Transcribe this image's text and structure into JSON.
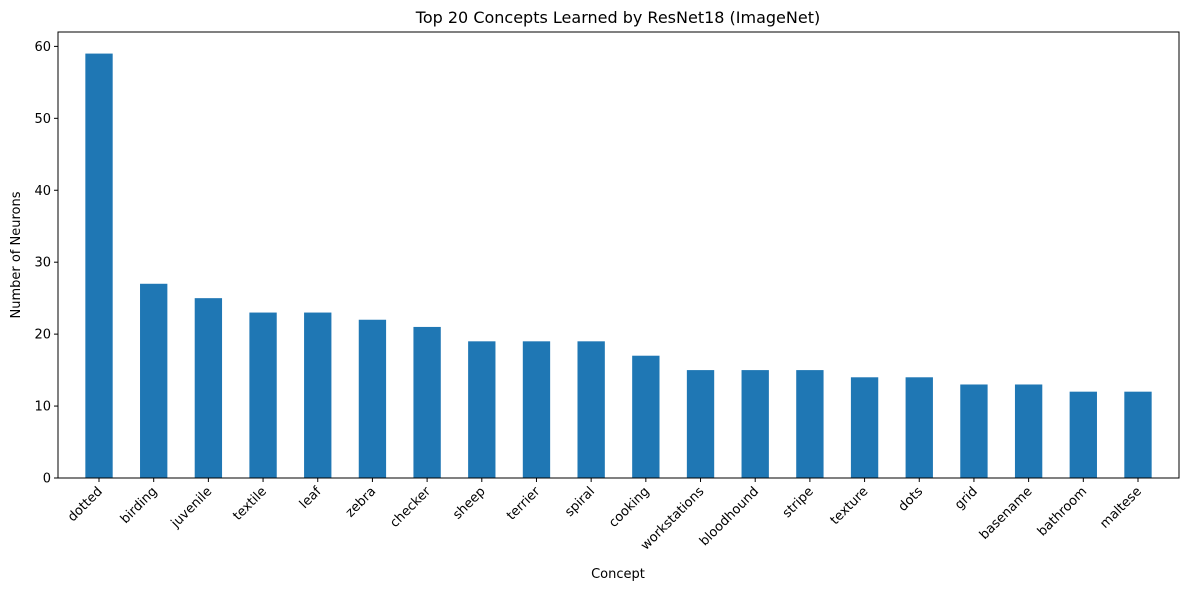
{
  "chart_data": {
    "type": "bar",
    "title": "Top 20 Concepts Learned by ResNet18 (ImageNet)",
    "xlabel": "Concept",
    "ylabel": "Number of Neurons",
    "categories": [
      "dotted",
      "birding",
      "juvenile",
      "textile",
      "leaf",
      "zebra",
      "checker",
      "sheep",
      "terrier",
      "spiral",
      "cooking",
      "workstations",
      "bloodhound",
      "stripe",
      "texture",
      "dots",
      "grid",
      "basename",
      "bathroom",
      "maltese"
    ],
    "values": [
      59,
      27,
      25,
      23,
      23,
      22,
      21,
      19,
      19,
      19,
      17,
      15,
      15,
      15,
      14,
      14,
      13,
      13,
      12,
      12
    ],
    "ylim": [
      0,
      62
    ],
    "yticks": [
      0,
      10,
      20,
      30,
      40,
      50,
      60
    ],
    "bar_color": "#1f77b4",
    "grid": false,
    "legend": "none"
  }
}
